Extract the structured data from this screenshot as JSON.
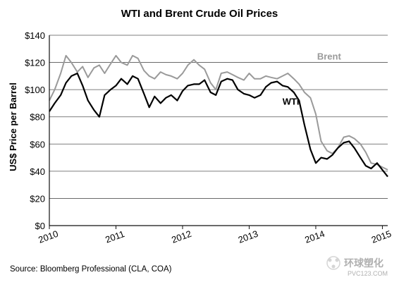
{
  "chart_data": {
    "type": "line",
    "title": "WTI and Brent Crude Oil Prices",
    "ylabel": "US$ Price per Barrel",
    "xlabel": "",
    "ylim": [
      0,
      140
    ],
    "xlim": [
      2010.0,
      2015.08
    ],
    "y_ticks": [
      "$0",
      "$20",
      "$40",
      "$60",
      "$80",
      "$100",
      "$120",
      "$140"
    ],
    "y_tick_values": [
      0,
      20,
      40,
      60,
      80,
      100,
      120,
      140
    ],
    "x_ticks": [
      "2010",
      "2011",
      "2012",
      "2013",
      "2014",
      "2015"
    ],
    "x_tick_values": [
      2010,
      2011,
      2012,
      2013,
      2014,
      2015
    ],
    "grid": "horizontal",
    "series": [
      {
        "name": "Brent",
        "color": "#9a9a9a",
        "x": [
          2010.0,
          2010.08,
          2010.17,
          2010.25,
          2010.33,
          2010.42,
          2010.5,
          2010.58,
          2010.67,
          2010.75,
          2010.83,
          2010.92,
          2011.0,
          2011.08,
          2011.17,
          2011.25,
          2011.33,
          2011.42,
          2011.5,
          2011.58,
          2011.67,
          2011.75,
          2011.83,
          2011.92,
          2012.0,
          2012.08,
          2012.17,
          2012.25,
          2012.33,
          2012.42,
          2012.5,
          2012.58,
          2012.67,
          2012.75,
          2012.83,
          2012.92,
          2013.0,
          2013.08,
          2013.17,
          2013.25,
          2013.33,
          2013.42,
          2013.5,
          2013.58,
          2013.67,
          2013.75,
          2013.83,
          2013.92,
          2014.0,
          2014.08,
          2014.17,
          2014.25,
          2014.33,
          2014.42,
          2014.5,
          2014.58,
          2014.67,
          2014.75,
          2014.83,
          2014.92,
          2015.0,
          2015.08
        ],
        "values": [
          92,
          100,
          112,
          125,
          120,
          113,
          117,
          109,
          116,
          118,
          112,
          119,
          125,
          120,
          118,
          125,
          123,
          114,
          110,
          108,
          113,
          111,
          110,
          108,
          112,
          118,
          122,
          118,
          115,
          105,
          100,
          112,
          113,
          111,
          109,
          107,
          112,
          108,
          108,
          110,
          109,
          108,
          110,
          112,
          108,
          104,
          98,
          94,
          82,
          62,
          55,
          53,
          57,
          65,
          66,
          64,
          60,
          54,
          46,
          45,
          43,
          41
        ]
      },
      {
        "name": "WTI",
        "color": "#000000",
        "x": [
          2010.0,
          2010.08,
          2010.17,
          2010.25,
          2010.33,
          2010.42,
          2010.5,
          2010.58,
          2010.67,
          2010.75,
          2010.83,
          2010.92,
          2011.0,
          2011.08,
          2011.17,
          2011.25,
          2011.33,
          2011.42,
          2011.5,
          2011.58,
          2011.67,
          2011.75,
          2011.83,
          2011.92,
          2012.0,
          2012.08,
          2012.17,
          2012.25,
          2012.33,
          2012.42,
          2012.5,
          2012.58,
          2012.67,
          2012.75,
          2012.83,
          2012.92,
          2013.0,
          2013.08,
          2013.17,
          2013.25,
          2013.33,
          2013.42,
          2013.5,
          2013.58,
          2013.67,
          2013.75,
          2013.83,
          2013.92,
          2014.0,
          2014.08,
          2014.17,
          2014.25,
          2014.33,
          2014.42,
          2014.5,
          2014.58,
          2014.67,
          2014.75,
          2014.83,
          2014.92,
          2015.0,
          2015.08
        ],
        "values": [
          84,
          90,
          96,
          105,
          110,
          112,
          103,
          92,
          85,
          80,
          96,
          100,
          103,
          108,
          104,
          110,
          108,
          97,
          87,
          95,
          90,
          94,
          96,
          92,
          99,
          103,
          104,
          104,
          107,
          98,
          96,
          106,
          108,
          107,
          100,
          97,
          96,
          94,
          96,
          102,
          105,
          106,
          103,
          102,
          98,
          92,
          74,
          56,
          46,
          50,
          49,
          52,
          57,
          61,
          62,
          57,
          50,
          44,
          42,
          46,
          41,
          36
        ]
      }
    ],
    "series_labels": [
      {
        "text": "Brent",
        "at": [
          2014.02,
          122
        ],
        "color": "#9a9a9a"
      },
      {
        "text": "WTI",
        "at": [
          2013.5,
          89
        ],
        "color": "#000000"
      }
    ]
  },
  "source": "Source: Bloomberg Professional (CLA, COA)",
  "watermark": {
    "chinese": "环球塑化",
    "url": "PVC123.COM"
  }
}
